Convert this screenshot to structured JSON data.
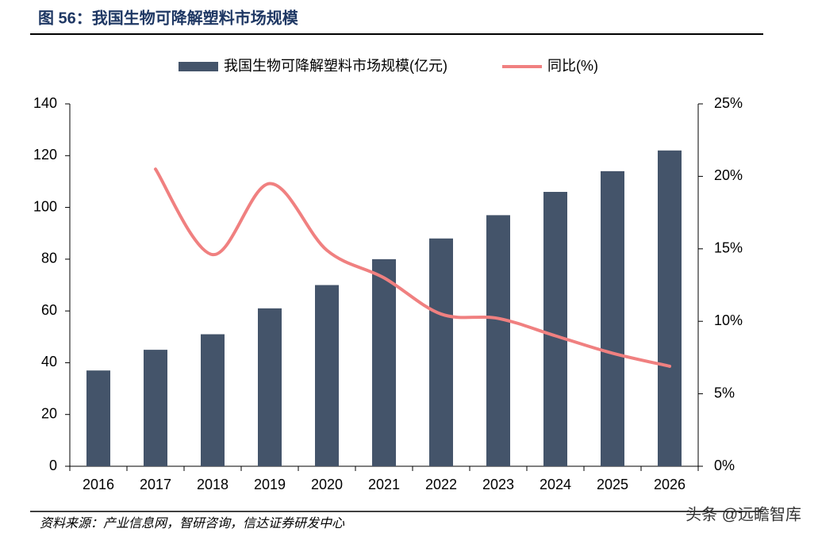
{
  "chart_data": {
    "type": "bar",
    "title": "图 56：我国生物可降解塑料市场规模",
    "categories": [
      "2016",
      "2017",
      "2018",
      "2019",
      "2020",
      "2021",
      "2022",
      "2023",
      "2024",
      "2025",
      "2026"
    ],
    "series": [
      {
        "name": "我国生物可降解塑料市场规模(亿元)",
        "type": "bar",
        "color": "#44546a",
        "values": [
          37,
          45,
          51,
          61,
          70,
          80,
          88,
          97,
          106,
          114,
          122
        ]
      },
      {
        "name": "同比(%)",
        "type": "line",
        "axis": "y2",
        "color": "#f08080",
        "values": [
          null,
          20.5,
          14.6,
          19.5,
          14.9,
          13.0,
          10.5,
          10.2,
          9.0,
          7.8,
          6.9
        ]
      }
    ],
    "ylim": [
      0,
      140
    ],
    "yticks": [
      0,
      20,
      40,
      60,
      80,
      100,
      120,
      140
    ],
    "y2lim": [
      0,
      25
    ],
    "y2ticks": [
      {
        "value": 0,
        "label": "0%"
      },
      {
        "value": 5,
        "label": "5%"
      },
      {
        "value": 10,
        "label": "10%"
      },
      {
        "value": 15,
        "label": "15%"
      },
      {
        "value": 20,
        "label": "20%"
      },
      {
        "value": 25,
        "label": "25%"
      }
    ],
    "grid": false,
    "legend": "top"
  },
  "source": "资料来源：产业信息网，智研咨询，信达证券研发中心",
  "watermark": "头条 @远瞻智库"
}
